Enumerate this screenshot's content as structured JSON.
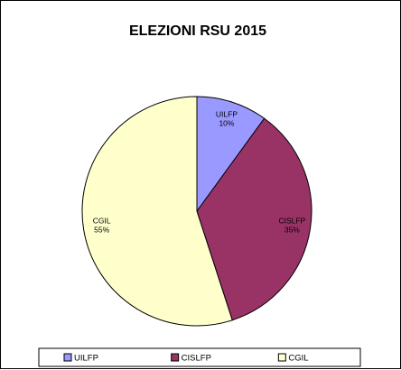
{
  "chart_data": {
    "type": "pie",
    "title": "ELEZIONI RSU 2015",
    "categories": [
      "UILFP",
      "CISLFP",
      "CGIL"
    ],
    "values": [
      10,
      35,
      55
    ],
    "labels": [
      "10%",
      "35%",
      "55%"
    ],
    "colors": [
      "#9999ff",
      "#993366",
      "#ffffcc"
    ],
    "legend_position": "bottom"
  }
}
